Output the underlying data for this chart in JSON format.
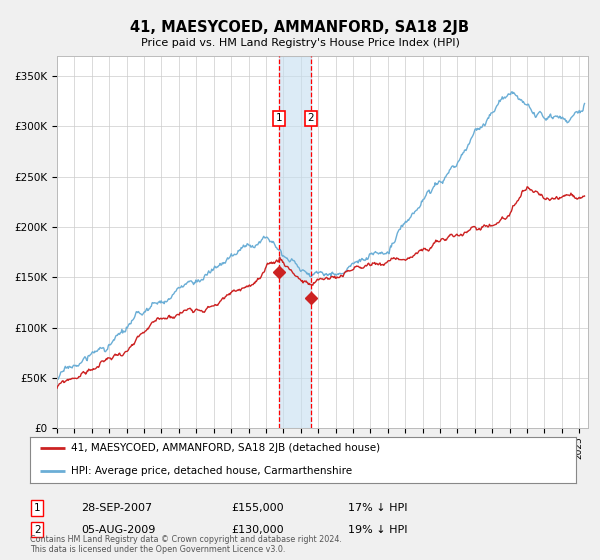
{
  "title": "41, MAESYCOED, AMMANFORD, SA18 2JB",
  "subtitle": "Price paid vs. HM Land Registry's House Price Index (HPI)",
  "legend_line1": "41, MAESYCOED, AMMANFORD, SA18 2JB (detached house)",
  "legend_line2": "HPI: Average price, detached house, Carmarthenshire",
  "annotation1_date": "28-SEP-2007",
  "annotation1_price": "£155,000",
  "annotation1_hpi": "17% ↓ HPI",
  "annotation2_date": "05-AUG-2009",
  "annotation2_price": "£130,000",
  "annotation2_hpi": "19% ↓ HPI",
  "copyright": "Contains HM Land Registry data © Crown copyright and database right 2024.\nThis data is licensed under the Open Government Licence v3.0.",
  "sale1_x": 2007.75,
  "sale1_y": 155000,
  "sale2_x": 2009.58,
  "sale2_y": 130000,
  "hpi_color": "#6baed6",
  "price_color": "#cc2222",
  "background_color": "#f0f0f0",
  "plot_background": "#ffffff",
  "ylim": [
    0,
    370000
  ],
  "yticks": [
    0,
    50000,
    100000,
    150000,
    200000,
    250000,
    300000,
    350000
  ],
  "xlim": [
    1995.0,
    2025.5
  ],
  "hpi_seed": 17,
  "price_seed": 99
}
